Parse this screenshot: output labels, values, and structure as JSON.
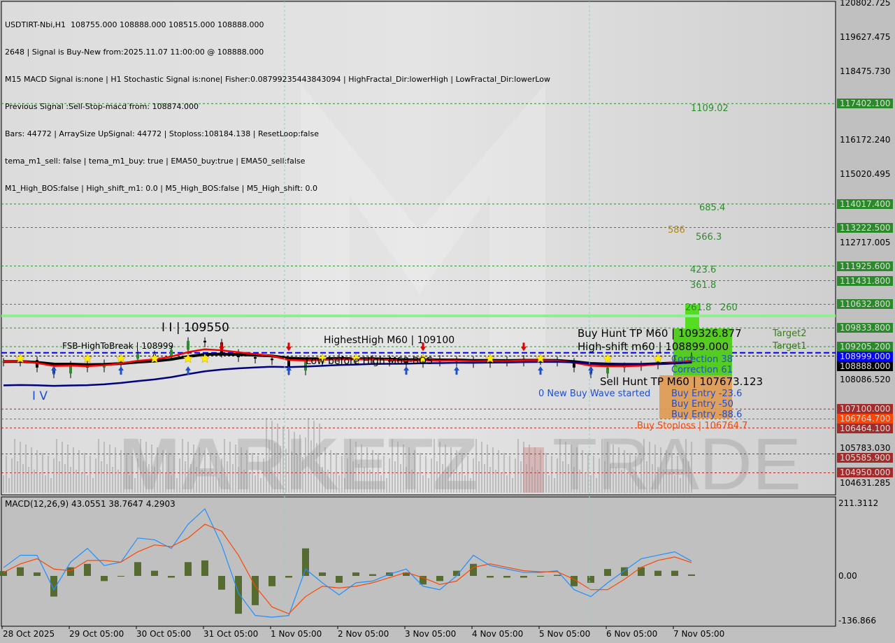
{
  "header": {
    "lines": [
      "USDTIRT-Nbi,H1  108755.000 108888.000 108515.000 108888.000",
      "2648 | Signal is Buy-New from:2025.11.07 11:00:00 @ 108888.000",
      "M15 MACD Signal is:none | H1 Stochastic Signal is:none| Fisher:0.08799235443843094 | HighFractal_Dir:lowerHigh | LowFractal_Dir:lowerLow",
      "Previous Signal :Sell-Stop-macd from: 108874.000",
      "Bars: 44772 | ArraySize UpSignal: 44772 | Stoploss:108184.138 | ResetLoop:false",
      "tema_m1_sell: false | tema_m1_buy: true | EMA50_buy:true | EMA50_sell:false",
      "M1_High_BOS:false | High_shift_m1: 0.0 | M5_High_BOS:false | M5_High_shift: 0.0"
    ]
  },
  "watermark": "MARKETZITRADE",
  "colors": {
    "bg": "#d6d6d6",
    "green_level": "#2e8b2e",
    "red_level": "#a52a2a",
    "orange_level": "#ff4500",
    "blue_level": "#0000ff",
    "macd_line": "#1e90ff",
    "signal_line": "#ff4500",
    "histogram": "#556b2f",
    "ema_red": "#ff0000",
    "ema_black": "#000000",
    "ema_navy": "#000080"
  },
  "chart_data": [
    {
      "type": "line",
      "symbol": "USDTIRT-Nbi,H1",
      "ylim": [
        104631.285,
        120802.725
      ],
      "y_ticks": [
        "120802.725",
        "119627.475",
        "118475.730",
        "116172.240",
        "115020.495",
        "112717.005",
        "108086.520",
        "105783.030",
        "104631.285"
      ],
      "x_ticks": [
        "28 Oct 2025",
        "29 Oct 05:00",
        "30 Oct 05:00",
        "31 Oct 05:00",
        "1 Nov 05:00",
        "2 Nov 05:00",
        "3 Nov 05:00",
        "4 Nov 05:00",
        "5 Nov 05:00",
        "6 Nov 05:00",
        "7 Nov 05:00"
      ],
      "close": [
        108700,
        108750,
        108500,
        108300,
        108600,
        108500,
        108650,
        108800,
        108950,
        108900,
        109100,
        109400,
        109350,
        109000,
        108850,
        108800,
        108750,
        108400,
        108700,
        108800,
        108850,
        108750,
        108800,
        108700,
        108650,
        108800,
        108700,
        108750,
        108650,
        108750,
        108700,
        108800,
        108750,
        108700,
        108500,
        108300,
        108500,
        108550,
        108600,
        108750,
        108800,
        108888
      ],
      "levels": [
        {
          "price": 117402.1,
          "label": "117402.100",
          "kind": "green"
        },
        {
          "price": 114017.4,
          "label": "114017.400",
          "kind": "green"
        },
        {
          "price": 113222.5,
          "label": "113222.500",
          "kind": "green"
        },
        {
          "price": 111925.6,
          "label": "111925.600",
          "kind": "green"
        },
        {
          "price": 111431.8,
          "label": "111431.800",
          "kind": "green"
        },
        {
          "price": 110632.8,
          "label": "110632.800",
          "kind": "green"
        },
        {
          "price": 109833.8,
          "label": "109833.800",
          "kind": "green"
        },
        {
          "price": 109205.2,
          "label": "109205.200",
          "kind": "green"
        },
        {
          "price": 108999.0,
          "label": "108999.000",
          "kind": "blue"
        },
        {
          "price": 108888.0,
          "label": "108888.000",
          "kind": "black"
        },
        {
          "price": 107100.0,
          "label": "107100.000",
          "kind": "red"
        },
        {
          "price": 106764.7,
          "label": "106764.700",
          "kind": "orange"
        },
        {
          "price": 106464.1,
          "label": "106464.100",
          "kind": "red"
        },
        {
          "price": 105585.9,
          "label": "105585.900",
          "kind": "red"
        },
        {
          "price": 104950.0,
          "label": "104950.000",
          "kind": "red"
        }
      ],
      "fib_labels": [
        "1109.02",
        "685.4",
        "586",
        "566.3",
        "423.6",
        "361.8",
        "261.8",
        "260"
      ],
      "annotations": {
        "buy_hunt_tp": "Buy Hunt TP M60 | 109326.877",
        "high_shift": "High-shift m60 | 108899.000",
        "sell_hunt_tp": "Sell Hunt TP M60 | 107673.123",
        "new_wave": "0 New Buy Wave started",
        "buy_entry_1": "Buy Entry -23.6",
        "buy_entry_2": "Buy Entry -50",
        "buy_entry_3": "Buy Entry -88.6",
        "correction_38": "Correction 38",
        "correction_61": "Correction 61",
        "target2": "Target2",
        "target1": "Target1",
        "buy_stoploss": "Buy Stoploss | 106764.7",
        "highest_high": "HighestHigh   M60 | 109100",
        "low_before_high": "Low before High   M60-BOS",
        "fsb": "FSB-HighToBreak | 108999",
        "wave_iii": "I I | 109550",
        "wave_iv": "I V"
      }
    },
    {
      "type": "line",
      "title": "MACD(12,26,9) 43.0551 38.7647 4.2903",
      "ylim": [
        -136.866,
        211.3112
      ],
      "y_ticks": [
        "211.3112",
        "0.00",
        "-136.866"
      ],
      "macd": [
        24,
        60,
        60,
        -40,
        40,
        80,
        30,
        40,
        110,
        105,
        80,
        150,
        195,
        90,
        -50,
        -115,
        -120,
        -115,
        20,
        -20,
        -55,
        -20,
        -15,
        5,
        20,
        -30,
        -40,
        0,
        60,
        30,
        20,
        10,
        10,
        15,
        -40,
        -60,
        -20,
        15,
        50,
        60,
        70,
        43.0551
      ],
      "signal": [
        10,
        35,
        50,
        20,
        15,
        45,
        45,
        40,
        70,
        90,
        85,
        110,
        150,
        130,
        60,
        -30,
        -90,
        -110,
        -60,
        -30,
        -35,
        -30,
        -20,
        -5,
        10,
        -5,
        -25,
        -15,
        25,
        35,
        25,
        15,
        12,
        12,
        -10,
        -40,
        -40,
        -10,
        25,
        45,
        55,
        38.7647
      ]
    }
  ]
}
